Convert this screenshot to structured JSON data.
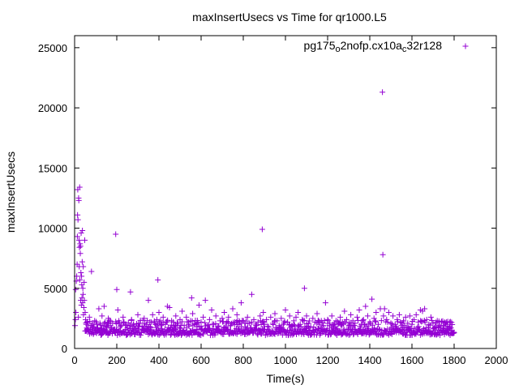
{
  "chart_data": {
    "type": "scatter",
    "title": "maxInsertUsecs vs Time for qr1000.L5",
    "xlabel": "Time(s)",
    "ylabel": "maxInsertUsecs",
    "xlim": [
      0,
      2000
    ],
    "ylim": [
      0,
      26000
    ],
    "xticks": [
      0,
      200,
      400,
      600,
      800,
      1000,
      1200,
      1400,
      1600,
      1800,
      2000
    ],
    "yticks": [
      0,
      5000,
      10000,
      15000,
      20000,
      25000
    ],
    "grid": false,
    "legend_position": "top-right",
    "marker": "+",
    "color": "#9400d3",
    "series": [
      {
        "name": "pg175_o2nofp.cx10a_c32r128",
        "name_parts": [
          {
            "text": "pg175",
            "sub": false
          },
          {
            "text": "o",
            "sub": true
          },
          {
            "text": "2nofp.cx10a",
            "sub": false
          },
          {
            "text": "c",
            "sub": true
          },
          {
            "text": "32r128",
            "sub": false
          }
        ],
        "points": [
          [
            2,
            1900
          ],
          [
            4,
            2400
          ],
          [
            5,
            4900
          ],
          [
            6,
            3000
          ],
          [
            8,
            5600
          ],
          [
            10,
            6000
          ],
          [
            12,
            7000
          ],
          [
            13,
            9300
          ],
          [
            14,
            11100
          ],
          [
            15,
            13200
          ],
          [
            16,
            10700
          ],
          [
            18,
            2600
          ],
          [
            19,
            12500
          ],
          [
            20,
            12300
          ],
          [
            21,
            9000
          ],
          [
            22,
            6800
          ],
          [
            23,
            8400
          ],
          [
            24,
            13400
          ],
          [
            25,
            5700
          ],
          [
            26,
            8700
          ],
          [
            27,
            7900
          ],
          [
            28,
            8500
          ],
          [
            29,
            4000
          ],
          [
            30,
            6300
          ],
          [
            31,
            9600
          ],
          [
            32,
            3600
          ],
          [
            33,
            6000
          ],
          [
            34,
            5300
          ],
          [
            35,
            4200
          ],
          [
            36,
            7200
          ],
          [
            37,
            9800
          ],
          [
            38,
            3800
          ],
          [
            39,
            5000
          ],
          [
            40,
            4500
          ],
          [
            41,
            6800
          ],
          [
            42,
            2800
          ],
          [
            44,
            3400
          ],
          [
            45,
            5500
          ],
          [
            46,
            4000
          ],
          [
            48,
            9000
          ],
          [
            50,
            3000
          ],
          [
            52,
            2400
          ],
          [
            55,
            2000
          ],
          [
            58,
            1700
          ],
          [
            60,
            2200
          ],
          [
            65,
            1900
          ],
          [
            70,
            2600
          ],
          [
            75,
            1600
          ],
          [
            80,
            6400
          ],
          [
            85,
            2100
          ],
          [
            90,
            1800
          ],
          [
            95,
            2300
          ],
          [
            100,
            1500
          ],
          [
            105,
            2000
          ],
          [
            110,
            1700
          ],
          [
            115,
            3300
          ],
          [
            120,
            2100
          ],
          [
            125,
            1600
          ],
          [
            130,
            2700
          ],
          [
            135,
            1900
          ],
          [
            140,
            3500
          ],
          [
            145,
            2200
          ],
          [
            150,
            1700
          ],
          [
            160,
            2500
          ],
          [
            170,
            1900
          ],
          [
            180,
            2100
          ],
          [
            190,
            1600
          ],
          [
            195,
            9500
          ],
          [
            200,
            4900
          ],
          [
            205,
            3200
          ],
          [
            210,
            2300
          ],
          [
            220,
            1900
          ],
          [
            230,
            2600
          ],
          [
            240,
            2000
          ],
          [
            250,
            1700
          ],
          [
            265,
            4700
          ],
          [
            270,
            2400
          ],
          [
            280,
            2000
          ],
          [
            290,
            1700
          ],
          [
            300,
            2800
          ],
          [
            310,
            2100
          ],
          [
            320,
            1800
          ],
          [
            330,
            2500
          ],
          [
            340,
            2000
          ],
          [
            350,
            4000
          ],
          [
            360,
            1700
          ],
          [
            370,
            2800
          ],
          [
            380,
            2100
          ],
          [
            390,
            2400
          ],
          [
            395,
            5700
          ],
          [
            400,
            3000
          ],
          [
            410,
            1900
          ],
          [
            420,
            2600
          ],
          [
            430,
            2000
          ],
          [
            440,
            3500
          ],
          [
            450,
            3400
          ],
          [
            460,
            2300
          ],
          [
            470,
            1900
          ],
          [
            480,
            2700
          ],
          [
            490,
            2100
          ],
          [
            500,
            2400
          ],
          [
            510,
            3100
          ],
          [
            520,
            1900
          ],
          [
            530,
            2600
          ],
          [
            540,
            2000
          ],
          [
            550,
            2300
          ],
          [
            555,
            4200
          ],
          [
            560,
            2900
          ],
          [
            570,
            2100
          ],
          [
            580,
            1800
          ],
          [
            590,
            3600
          ],
          [
            600,
            2200
          ],
          [
            610,
            2600
          ],
          [
            620,
            4000
          ],
          [
            630,
            1900
          ],
          [
            640,
            2400
          ],
          [
            650,
            3200
          ],
          [
            660,
            2000
          ],
          [
            670,
            2700
          ],
          [
            680,
            1800
          ],
          [
            690,
            2300
          ],
          [
            700,
            2500
          ],
          [
            710,
            3000
          ],
          [
            720,
            2100
          ],
          [
            730,
            2600
          ],
          [
            740,
            1900
          ],
          [
            750,
            3300
          ],
          [
            760,
            2200
          ],
          [
            770,
            2800
          ],
          [
            780,
            2000
          ],
          [
            790,
            3800
          ],
          [
            800,
            2300
          ],
          [
            810,
            1800
          ],
          [
            820,
            2600
          ],
          [
            830,
            2100
          ],
          [
            840,
            4500
          ],
          [
            850,
            2400
          ],
          [
            860,
            1900
          ],
          [
            870,
            2200
          ],
          [
            880,
            2700
          ],
          [
            890,
            9900
          ],
          [
            895,
            3000
          ],
          [
            900,
            2000
          ],
          [
            910,
            2400
          ],
          [
            920,
            1800
          ],
          [
            930,
            2600
          ],
          [
            940,
            2100
          ],
          [
            950,
            2900
          ],
          [
            960,
            2300
          ],
          [
            970,
            1900
          ],
          [
            980,
            2500
          ],
          [
            990,
            2000
          ],
          [
            1000,
            3200
          ],
          [
            1010,
            2200
          ],
          [
            1020,
            2700
          ],
          [
            1030,
            1900
          ],
          [
            1040,
            2300
          ],
          [
            1050,
            2600
          ],
          [
            1060,
            3000
          ],
          [
            1070,
            2000
          ],
          [
            1080,
            2400
          ],
          [
            1090,
            5000
          ],
          [
            1100,
            2700
          ],
          [
            1110,
            2100
          ],
          [
            1120,
            1800
          ],
          [
            1130,
            2500
          ],
          [
            1140,
            2200
          ],
          [
            1150,
            2900
          ],
          [
            1160,
            2000
          ],
          [
            1170,
            2300
          ],
          [
            1180,
            1900
          ],
          [
            1190,
            3800
          ],
          [
            1200,
            2400
          ],
          [
            1210,
            2100
          ],
          [
            1220,
            2700
          ],
          [
            1230,
            1800
          ],
          [
            1240,
            2300
          ],
          [
            1250,
            2000
          ],
          [
            1260,
            2600
          ],
          [
            1270,
            2200
          ],
          [
            1280,
            3100
          ],
          [
            1290,
            2400
          ],
          [
            1300,
            1900
          ],
          [
            1310,
            2800
          ],
          [
            1320,
            2300
          ],
          [
            1330,
            2100
          ],
          [
            1340,
            2600
          ],
          [
            1350,
            3200
          ],
          [
            1360,
            2000
          ],
          [
            1370,
            2400
          ],
          [
            1380,
            3500
          ],
          [
            1390,
            2700
          ],
          [
            1400,
            2200
          ],
          [
            1410,
            4100
          ],
          [
            1420,
            2500
          ],
          [
            1430,
            3000
          ],
          [
            1440,
            2000
          ],
          [
            1450,
            3300
          ],
          [
            1460,
            21300
          ],
          [
            1462,
            7800
          ],
          [
            1465,
            2700
          ],
          [
            1470,
            3300
          ],
          [
            1480,
            2400
          ],
          [
            1490,
            3000
          ],
          [
            1500,
            2100
          ],
          [
            1510,
            2700
          ],
          [
            1520,
            2000
          ],
          [
            1530,
            2400
          ],
          [
            1540,
            2800
          ],
          [
            1550,
            1900
          ],
          [
            1560,
            2300
          ],
          [
            1570,
            2600
          ],
          [
            1580,
            2100
          ],
          [
            1590,
            2700
          ],
          [
            1600,
            2000
          ],
          [
            1610,
            2400
          ],
          [
            1620,
            2800
          ],
          [
            1630,
            2200
          ],
          [
            1640,
            3200
          ],
          [
            1650,
            3100
          ],
          [
            1660,
            3300
          ],
          [
            1670,
            2400
          ],
          [
            1680,
            2000
          ],
          [
            1690,
            2600
          ],
          [
            1700,
            2100
          ],
          [
            1710,
            1800
          ],
          [
            1720,
            2300
          ],
          [
            1730,
            1900
          ],
          [
            1740,
            2200
          ],
          [
            1750,
            1700
          ],
          [
            1760,
            2000
          ],
          [
            1770,
            1600
          ],
          [
            1780,
            1800
          ],
          [
            1790,
            1500
          ],
          [
            1800,
            1300
          ]
        ],
        "baseline": {
          "x_range": [
            50,
            1800
          ],
          "step": 3,
          "y_min": 1100,
          "y_max": 1650
        }
      }
    ]
  }
}
